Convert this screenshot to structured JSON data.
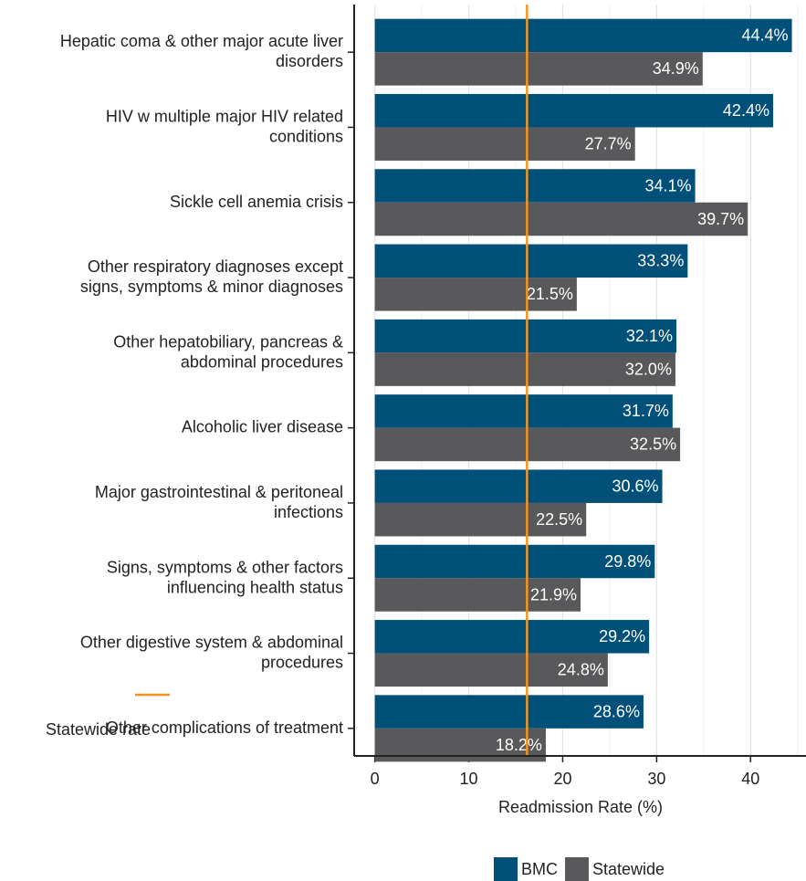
{
  "chart_data": {
    "type": "bar",
    "orientation": "horizontal",
    "x_label": "Readmission Rate (%)",
    "categories": [
      [
        "Hepatic coma & other major acute liver",
        "disorders"
      ],
      [
        "HIV w multiple major HIV related",
        "conditions"
      ],
      [
        "Sickle cell anemia crisis"
      ],
      [
        "Other respiratory diagnoses except",
        "signs, symptoms & minor diagnoses"
      ],
      [
        "Other hepatobiliary, pancreas &",
        "abdominal procedures"
      ],
      [
        "Alcoholic liver disease"
      ],
      [
        "Major gastrointestinal & peritoneal",
        "infections"
      ],
      [
        "Signs, symptoms & other factors",
        "influencing health status"
      ],
      [
        "Other digestive system & abdominal",
        "procedures"
      ],
      [
        "Other complications of treatment"
      ]
    ],
    "series": [
      {
        "name": "BMC",
        "color": "#00507a",
        "values": [
          44.4,
          42.4,
          34.1,
          33.3,
          32.1,
          31.7,
          30.6,
          29.8,
          29.2,
          28.6
        ],
        "value_labels": [
          "44.4%",
          "42.4%",
          "34.1%",
          "33.3%",
          "32.1%",
          "31.7%",
          "30.6%",
          "29.8%",
          "29.2%",
          "28.6%"
        ]
      },
      {
        "name": "Statewide",
        "color": "#59595b",
        "values": [
          34.9,
          27.7,
          39.7,
          21.5,
          32.0,
          32.5,
          22.5,
          21.9,
          24.8,
          18.2
        ],
        "value_labels": [
          "34.9%",
          "27.7%",
          "39.7%",
          "21.5%",
          "32.0%",
          "32.5%",
          "22.5%",
          "21.9%",
          "24.8%",
          "18.2%"
        ]
      }
    ],
    "reference_line": {
      "value": 16.2,
      "label": "Statewide rate",
      "color": "#f7941d"
    },
    "xlim": [
      -2.2,
      45.9
    ],
    "xticks": [
      0,
      10,
      20,
      30,
      40
    ],
    "xminor": [
      5,
      15,
      25,
      35,
      45
    ],
    "grid": true,
    "legend": "bottom"
  }
}
